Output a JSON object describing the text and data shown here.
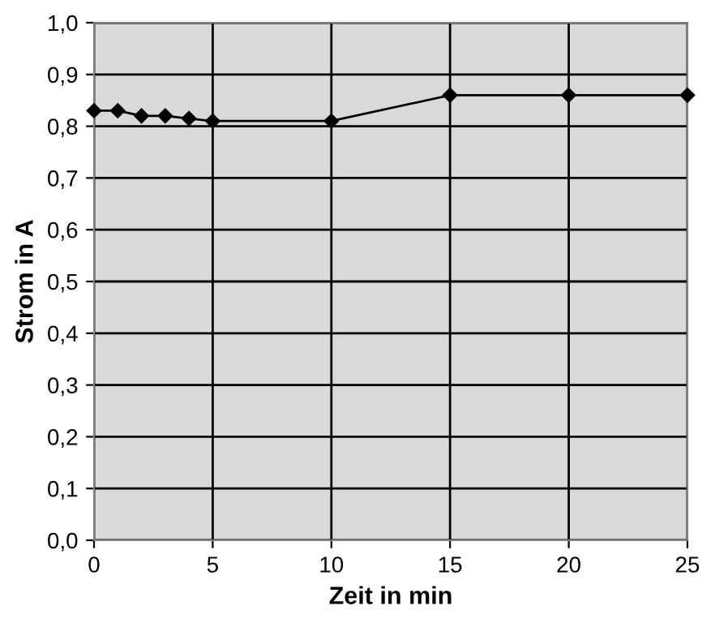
{
  "chart_data": {
    "type": "line",
    "xlabel": "Zeit in min",
    "ylabel": "Strom in A",
    "x": [
      0,
      1,
      2,
      3,
      4,
      5,
      10,
      15,
      20,
      25
    ],
    "series": [
      {
        "color": "#000000",
        "values": [
          0.83,
          0.83,
          0.82,
          0.82,
          0.815,
          0.81,
          0.81,
          0.86,
          0.86,
          0.86
        ]
      }
    ],
    "xlim": [
      0,
      25
    ],
    "xticks": [
      0,
      5,
      10,
      15,
      20,
      25
    ],
    "ylim": [
      0,
      1
    ],
    "yticks": [
      {
        "value": 0,
        "label": "0,0"
      },
      {
        "value": 0.1,
        "label": "0,1"
      },
      {
        "value": 0.2,
        "label": "0,2"
      },
      {
        "value": 0.3,
        "label": "0,3"
      },
      {
        "value": 0.4,
        "label": "0,4"
      },
      {
        "value": 0.5,
        "label": "0,5"
      },
      {
        "value": 0.6,
        "label": "0,6"
      },
      {
        "value": 0.7,
        "label": "0,7"
      },
      {
        "value": 0.8,
        "label": "0,8"
      },
      {
        "value": 0.9,
        "label": "0,9"
      },
      {
        "value": 1,
        "label": "1,0"
      }
    ],
    "grid": true,
    "marker": "diamond",
    "line_style": "solid"
  }
}
